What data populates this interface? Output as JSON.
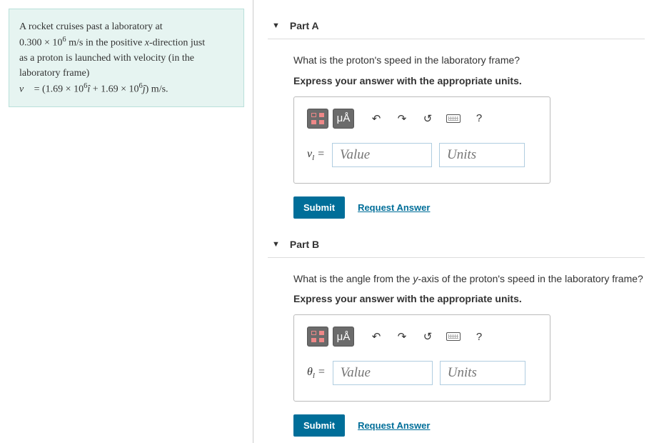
{
  "problem": {
    "line1": "A rocket cruises past a laboratory at",
    "speed_html": "0.300 × 10<sup>6</sup> m/s in the positive <i>x</i>-direction just",
    "line3": "as a proton is launched with velocity (in the",
    "line4": "laboratory frame)",
    "equation_html": "<i>v&#8407;</i> = (1.69 × 10<sup>6</sup><i>î</i> + 1.69 × 10<sup>6</sup><i>ĵ</i>) m/s."
  },
  "partA": {
    "title": "Part A",
    "prompt": "What is the proton's speed in the laboratory frame?",
    "hint": "Express your answer with the appropriate units.",
    "var_html": "<i>v<sub>l</sub></i> =",
    "value_placeholder": "Value",
    "units_placeholder": "Units",
    "submit": "Submit",
    "request": "Request Answer",
    "mu_label": "μÅ"
  },
  "partB": {
    "title": "Part B",
    "prompt_html": "What is the angle from the <i>y</i>-axis of the proton's speed in the laboratory frame?",
    "hint": "Express your answer with the appropriate units.",
    "var_html": "<i>θ<sub>l</sub></i> =",
    "value_placeholder": "Value",
    "units_placeholder": "Units",
    "submit": "Submit",
    "request": "Request Answer",
    "mu_label": "μÅ"
  },
  "colors": {
    "accent": "#006e99",
    "problem_bg": "#e6f4f1"
  }
}
